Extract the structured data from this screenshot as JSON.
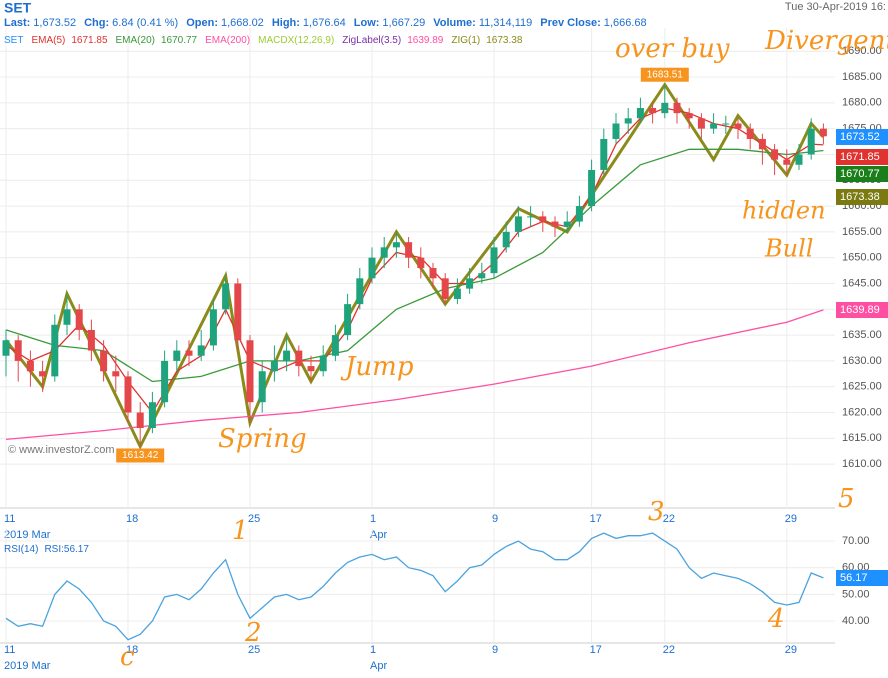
{
  "header": {
    "symbol": "SET",
    "fields": [
      {
        "label": "Last:",
        "value": "1,673.52"
      },
      {
        "label": "Chg:",
        "value": "6.84 (0.41 %)"
      },
      {
        "label": "Open:",
        "value": "1,668.02"
      },
      {
        "label": "High:",
        "value": "1,676.64"
      },
      {
        "label": "Low:",
        "value": "1,667.29"
      },
      {
        "label": "Volume:",
        "value": "11,314,119"
      },
      {
        "label": "Prev Close:",
        "value": "1,666.68"
      }
    ],
    "datetime": "Tue 30-Apr-2019 16:",
    "watermark": "© www.investorZ.com"
  },
  "chart_data": [
    {
      "type": "candlestick",
      "up_color": "#1fa37c",
      "down_color": "#e4474a",
      "categories": [
        "11",
        null,
        null,
        null,
        null,
        null,
        null,
        null,
        null,
        null,
        "18",
        null,
        null,
        null,
        null,
        null,
        null,
        null,
        null,
        null,
        "25",
        null,
        null,
        null,
        null,
        null,
        null,
        null,
        null,
        null,
        "1",
        null,
        null,
        null,
        null,
        null,
        null,
        null,
        null,
        null,
        "9",
        null,
        null,
        null,
        null,
        null,
        null,
        null,
        "17",
        null,
        null,
        null,
        null,
        null,
        "22",
        null,
        null,
        null,
        null,
        null,
        null,
        null,
        null,
        null,
        "29",
        null,
        null,
        null
      ],
      "period_labels": [
        "2019 Mar",
        "Apr"
      ],
      "series": [
        {
          "name": "SET",
          "color": "#1e90ff",
          "open": [
            1631,
            1634,
            1630,
            1628,
            1627,
            1637,
            1640,
            1636,
            1632,
            1628,
            1627,
            1620,
            1617,
            1622,
            1630,
            1632,
            1631,
            1633,
            1640,
            1645,
            1634,
            1622,
            1628,
            1630,
            1632,
            1629,
            1628,
            1631,
            1635,
            1641,
            1646,
            1650,
            1652,
            1653,
            1650,
            1648,
            1646,
            1642,
            1644,
            1646,
            1647,
            1652,
            1655,
            1658,
            1658,
            1657,
            1656,
            1657,
            1660,
            1667,
            1673,
            1676,
            1677,
            1679,
            1678,
            1680,
            1678,
            1677,
            1675,
            1676,
            1676,
            1675,
            1673,
            1671,
            1669,
            1668,
            1670,
            1675
          ],
          "high": [
            1636,
            1635,
            1632,
            1630,
            1639,
            1643,
            1641,
            1638,
            1634,
            1631,
            1628,
            1622,
            1624,
            1632,
            1634,
            1634,
            1636,
            1642,
            1646.5,
            1646,
            1635,
            1630,
            1633,
            1635,
            1633,
            1631,
            1633,
            1637,
            1643,
            1648,
            1652,
            1654,
            1655,
            1654,
            1652,
            1649,
            1647,
            1646,
            1648,
            1649,
            1654,
            1657,
            1660,
            1660,
            1659,
            1658,
            1659,
            1662,
            1669,
            1675,
            1678,
            1679,
            1681,
            1680,
            1683.51,
            1681,
            1679,
            1678,
            1678,
            1677.5,
            1677,
            1676,
            1674,
            1672,
            1671,
            1672,
            1677,
            1676
          ],
          "low": [
            1627,
            1626,
            1625,
            1624,
            1626,
            1635,
            1634,
            1630,
            1626,
            1624,
            1618,
            1613.42,
            1616,
            1621,
            1628,
            1629,
            1630,
            1632,
            1639,
            1632,
            1618,
            1620,
            1626,
            1628,
            1627,
            1626,
            1627,
            1630,
            1634,
            1640,
            1645,
            1648,
            1650,
            1648,
            1646,
            1644,
            1641,
            1641,
            1643,
            1645,
            1646,
            1651,
            1654,
            1656,
            1655,
            1654,
            1655,
            1656,
            1659,
            1666,
            1672,
            1674,
            1676,
            1676,
            1677,
            1676,
            1675,
            1673,
            1674,
            1674,
            1673,
            1671,
            1668,
            1666,
            1666,
            1667,
            1669,
            1672
          ],
          "close": [
            1634,
            1630,
            1628,
            1627,
            1637,
            1640,
            1636,
            1632,
            1628,
            1627,
            1620,
            1617,
            1622,
            1630,
            1632,
            1631,
            1633,
            1640,
            1645,
            1634,
            1622,
            1628,
            1630,
            1632,
            1629,
            1628,
            1631,
            1635,
            1641,
            1646,
            1650,
            1652,
            1653,
            1650,
            1648,
            1646,
            1642,
            1644,
            1646,
            1647,
            1652,
            1655,
            1658,
            1658,
            1657,
            1656,
            1657,
            1660,
            1667,
            1673,
            1676,
            1677,
            1679,
            1678,
            1680,
            1678,
            1677,
            1675,
            1676,
            1676,
            1675,
            1673,
            1671,
            1669,
            1668,
            1670,
            1675,
            1673.52
          ]
        }
      ],
      "lines": [
        {
          "name": "EMA(5)",
          "color": "#e0322f",
          "x": [
            0,
            2,
            4,
            6,
            8,
            10,
            12,
            14,
            16,
            18,
            20,
            22,
            24,
            26,
            28,
            30,
            32,
            34,
            36,
            38,
            40,
            42,
            44,
            46,
            48,
            50,
            52,
            54,
            56,
            58,
            60,
            62,
            64,
            66,
            67
          ],
          "values": [
            1633,
            1630,
            1632,
            1637,
            1633,
            1626,
            1620,
            1628,
            1631,
            1640,
            1630,
            1628,
            1630,
            1630,
            1636,
            1646,
            1651,
            1650,
            1645,
            1645,
            1649,
            1655,
            1657,
            1656,
            1662,
            1672,
            1677,
            1679,
            1678,
            1676,
            1675,
            1672,
            1669,
            1672,
            1671.85
          ]
        },
        {
          "name": "EMA(20)",
          "color": "#3a9a3a",
          "x": [
            0,
            4,
            8,
            12,
            16,
            20,
            24,
            28,
            32,
            36,
            40,
            44,
            48,
            52,
            56,
            60,
            64,
            67
          ],
          "values": [
            1636,
            1633,
            1632,
            1626,
            1627,
            1630,
            1630,
            1632,
            1640,
            1644,
            1646,
            1651,
            1660,
            1668,
            1671,
            1671,
            1670,
            1670.77
          ]
        },
        {
          "name": "EMA(200)",
          "color": "#ff4fa3",
          "x": [
            0,
            8,
            16,
            24,
            32,
            40,
            48,
            56,
            64,
            67
          ],
          "values": [
            1614.8,
            1616.5,
            1618.5,
            1620,
            1622.5,
            1625.5,
            1629,
            1633.5,
            1637.5,
            1639.89
          ]
        },
        {
          "name": "ZIG(1)",
          "color": "#8b8b1a",
          "x": [
            0,
            3,
            5,
            11,
            18,
            20,
            23,
            25,
            32,
            36,
            42,
            46,
            54,
            58,
            60,
            64,
            66,
            67
          ],
          "values": [
            1634,
            1625,
            1643,
            1613.42,
            1646.5,
            1618,
            1635,
            1626,
            1655,
            1641,
            1659.5,
            1655,
            1683.51,
            1669,
            1677.5,
            1666,
            1676,
            1673.38
          ]
        }
      ],
      "indicators": [
        {
          "name": "MACDX(12,26,9)",
          "color": "#9acd32"
        },
        {
          "name": "ZigLabel(3.5)",
          "color": "#7b2fa8"
        }
      ],
      "ylim": [
        1601.5,
        1694.5
      ],
      "yticks": [
        {
          "value": 1610,
          "label": "1610.00"
        },
        {
          "value": 1615,
          "label": "1615.00"
        },
        {
          "value": 1620,
          "label": "1620.00"
        },
        {
          "value": 1625,
          "label": "1625.00"
        },
        {
          "value": 1630,
          "label": "1630.00"
        },
        {
          "value": 1635,
          "label": "1635.00"
        },
        {
          "value": 1640,
          "label": "1640.00"
        },
        {
          "value": 1645,
          "label": "1645.00"
        },
        {
          "value": 1650,
          "label": "1650.00"
        },
        {
          "value": 1655,
          "label": "1655.00"
        },
        {
          "value": 1660,
          "label": "1660.00"
        },
        {
          "value": 1665,
          "label": "1665.00"
        },
        {
          "value": 1670,
          "label": "1670.00"
        },
        {
          "value": 1675,
          "label": "1675.00"
        },
        {
          "value": 1680,
          "label": "1680.00"
        },
        {
          "value": 1685,
          "label": "1685.00"
        },
        {
          "value": 1690,
          "label": "1690.00"
        }
      ],
      "grid": true,
      "annotations": [
        "over buy",
        "Divergent",
        "Spring",
        "Jump",
        "hidden",
        "Bull"
      ]
    },
    {
      "type": "line",
      "title": "RSI(14)",
      "categories": [
        "11",
        null,
        null,
        null,
        null,
        null,
        null,
        null,
        null,
        null,
        "18",
        null,
        null,
        null,
        null,
        null,
        null,
        null,
        null,
        null,
        "25",
        null,
        null,
        null,
        null,
        null,
        null,
        null,
        null,
        null,
        "1",
        null,
        null,
        null,
        null,
        null,
        null,
        null,
        null,
        null,
        "9",
        null,
        null,
        null,
        null,
        null,
        null,
        null,
        "17",
        null,
        null,
        null,
        null,
        null,
        "22",
        null,
        null,
        null,
        null,
        null,
        null,
        null,
        null,
        null,
        "29",
        null,
        null,
        null
      ],
      "period_labels": [
        "2019 Mar",
        "Apr"
      ],
      "series": [
        {
          "name": "RSI:",
          "color": "#4aa3df",
          "values": [
            41,
            38,
            39,
            38,
            50,
            55,
            52,
            47,
            40,
            38,
            33,
            35,
            40,
            49,
            50,
            48,
            52,
            58,
            63,
            50,
            41,
            45,
            49,
            50,
            48,
            49,
            53,
            58,
            62,
            64,
            65,
            63,
            64,
            60,
            59,
            57,
            51,
            55,
            60,
            61,
            65,
            68,
            70,
            67,
            66,
            63,
            63,
            66,
            71,
            73,
            71,
            72,
            72,
            73,
            70,
            67,
            60,
            56,
            58,
            57,
            56,
            54,
            51,
            47,
            46,
            47,
            58,
            56.17
          ]
        }
      ],
      "ylim": [
        31.75,
        74.9
      ],
      "yticks": [
        {
          "value": 40,
          "label": "40.00"
        },
        {
          "value": 50,
          "label": "50.00"
        },
        {
          "value": 60,
          "label": "60.00"
        },
        {
          "value": 70,
          "label": "70.00"
        }
      ],
      "grid": true,
      "annotations": [
        "1",
        "2",
        "3",
        "4",
        "5",
        "c"
      ]
    }
  ]
}
